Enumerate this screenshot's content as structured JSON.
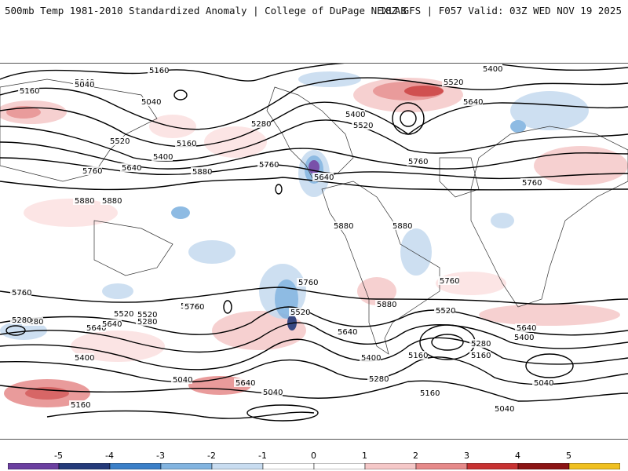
{
  "header": {
    "title": "500mb Temp 1981-2010 Standardized Anomaly | College of DuPage NEXLAB",
    "run_info": "18Z GFS | F057 Valid: 03Z WED NOV 19 2025"
  },
  "contour_labels": [
    "5160",
    "5040",
    "5040",
    "5160",
    "5400",
    "5520",
    "5640",
    "5760",
    "5880",
    "5880",
    "5880",
    "5160",
    "5280",
    "5400",
    "5520",
    "5520",
    "5640",
    "5280",
    "5400",
    "5760",
    "5640",
    "5760",
    "5880",
    "5880",
    "5760",
    "5760",
    "5760",
    "5880",
    "5520",
    "5640",
    "5400",
    "5280",
    "5160",
    "5040",
    "5520",
    "5400",
    "5640",
    "5160",
    "5280",
    "5040",
    "5040",
    "5160",
    "5280",
    "5400",
    "5520",
    "5640",
    "5760",
    "5040",
    "5160",
    "5280",
    "5400",
    "5640",
    "5040",
    "5760",
    "5280",
    "5760",
    "5520",
    "5640",
    "5760"
  ],
  "colorbar": {
    "ticks": [
      "-5",
      "-4",
      "-3",
      "-2",
      "-1",
      "0",
      "1",
      "2",
      "3",
      "4",
      "5"
    ],
    "colors": [
      "#6b3fa0",
      "#243a7a",
      "#3a7fc8",
      "#82b4e0",
      "#c8dcf0",
      "#ffffff",
      "#ffffff",
      "#f5c8c8",
      "#e68a8a",
      "#c83232",
      "#8c1414",
      "#f0c020"
    ]
  }
}
